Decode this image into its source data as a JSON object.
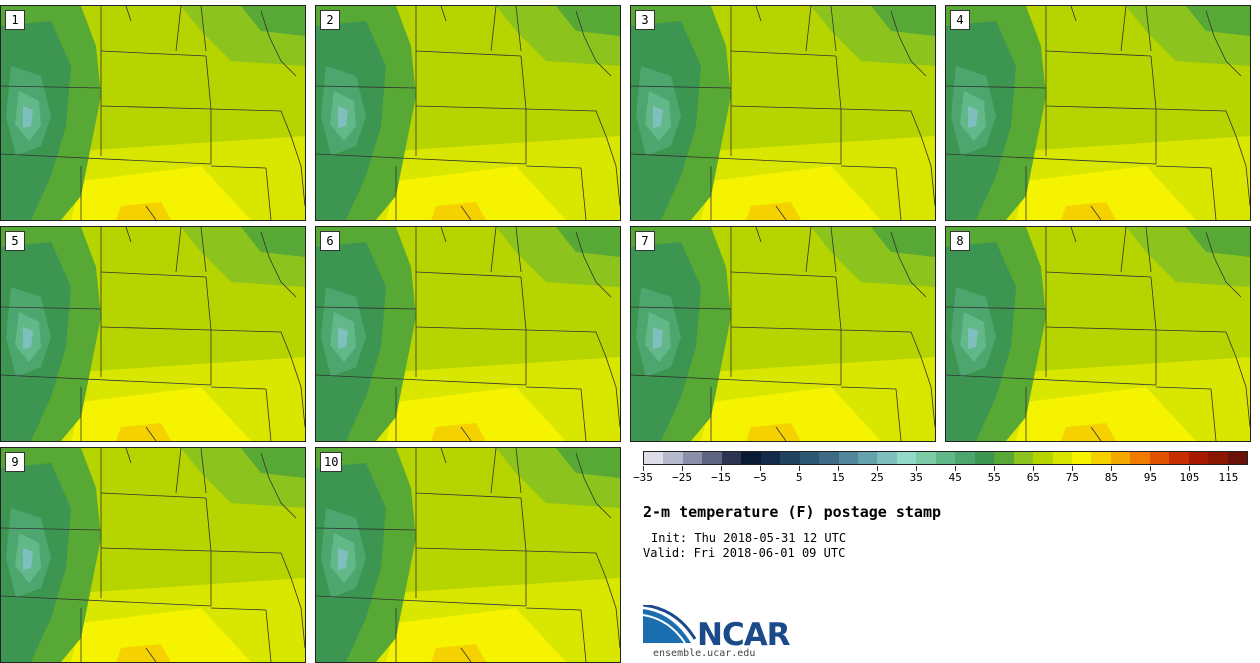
{
  "panels": [
    {
      "label": "1"
    },
    {
      "label": "2"
    },
    {
      "label": "3"
    },
    {
      "label": "4"
    },
    {
      "label": "5"
    },
    {
      "label": "6"
    },
    {
      "label": "7"
    },
    {
      "label": "8"
    },
    {
      "label": "9"
    },
    {
      "label": "10"
    }
  ],
  "colorbar": {
    "tick_labels": [
      "-35",
      "-25",
      "-15",
      "-5",
      "5",
      "15",
      "25",
      "35",
      "45",
      "55",
      "65",
      "75",
      "85",
      "95",
      "105",
      "115"
    ],
    "tick_values": [
      -35,
      -25,
      -15,
      -5,
      5,
      15,
      25,
      35,
      45,
      55,
      65,
      75,
      85,
      95,
      105,
      115
    ],
    "range": [
      -35,
      120
    ],
    "colors": [
      "#dcdde8",
      "#b7b9cc",
      "#8c8fa8",
      "#5f6483",
      "#2c3453",
      "#0a1a35",
      "#132a48",
      "#21425e",
      "#2d5672",
      "#3d6b85",
      "#52869a",
      "#66a2ae",
      "#7fbfbe",
      "#93d8c9",
      "#7ccba6",
      "#63b889",
      "#4ea66f",
      "#3c9550",
      "#58a835",
      "#8cc41d",
      "#b6d400",
      "#d8e600",
      "#f5f300",
      "#f6d100",
      "#f5a800",
      "#f07b00",
      "#e05200",
      "#c92e00",
      "#a81a00",
      "#8a1500",
      "#6b1208"
    ]
  },
  "title": "2-m temperature (F) postage stamp",
  "init": "Init: Thu 2018-05-31 12 UTC",
  "valid": "Valid: Fri 2018-06-01 09 UTC",
  "logo": {
    "name": "NCAR"
  },
  "url": "ensemble.ucar.edu"
}
